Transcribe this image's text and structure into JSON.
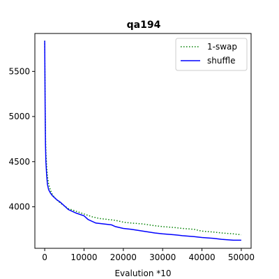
{
  "chart_data": {
    "type": "line",
    "title": "qa194",
    "xlabel": "Evalution *10",
    "ylabel": "",
    "xlim": [
      -2500,
      52500
    ],
    "ylim": [
      3540,
      5920
    ],
    "xticks": [
      0,
      10000,
      20000,
      30000,
      40000,
      50000
    ],
    "yticks": [
      4000,
      4500,
      5000,
      5500
    ],
    "legend_position": "top-right",
    "grid": false,
    "series": [
      {
        "name": "1-swap",
        "style": "dotted",
        "color": "#008000",
        "x": [
          0,
          100,
          200,
          300,
          500,
          700,
          1000,
          1500,
          2000,
          3000,
          4000,
          5000,
          6000,
          8000,
          10000,
          12000,
          14000,
          16000,
          18000,
          20000,
          22000,
          25000,
          28000,
          30000,
          33000,
          35000,
          38000,
          40000,
          43000,
          45000,
          48000,
          50000
        ],
        "y": [
          5840,
          5200,
          4800,
          4600,
          4450,
          4340,
          4250,
          4180,
          4130,
          4080,
          4040,
          4010,
          3980,
          3950,
          3920,
          3890,
          3870,
          3860,
          3850,
          3830,
          3820,
          3810,
          3790,
          3780,
          3770,
          3760,
          3750,
          3730,
          3720,
          3710,
          3700,
          3690
        ]
      },
      {
        "name": "shuffle",
        "style": "solid",
        "color": "#0000ff",
        "x": [
          0,
          100,
          200,
          300,
          500,
          700,
          1000,
          1500,
          2000,
          3000,
          4000,
          5000,
          6000,
          8000,
          10000,
          11000,
          13000,
          17000,
          18000,
          20000,
          22000,
          25000,
          28000,
          30000,
          33000,
          35000,
          38000,
          40000,
          43000,
          45000,
          48000,
          50000
        ],
        "y": [
          5840,
          5100,
          4700,
          4500,
          4350,
          4250,
          4190,
          4150,
          4120,
          4080,
          4050,
          4010,
          3970,
          3930,
          3900,
          3860,
          3820,
          3800,
          3780,
          3760,
          3750,
          3730,
          3710,
          3700,
          3690,
          3680,
          3670,
          3660,
          3650,
          3640,
          3630,
          3630
        ]
      }
    ]
  }
}
